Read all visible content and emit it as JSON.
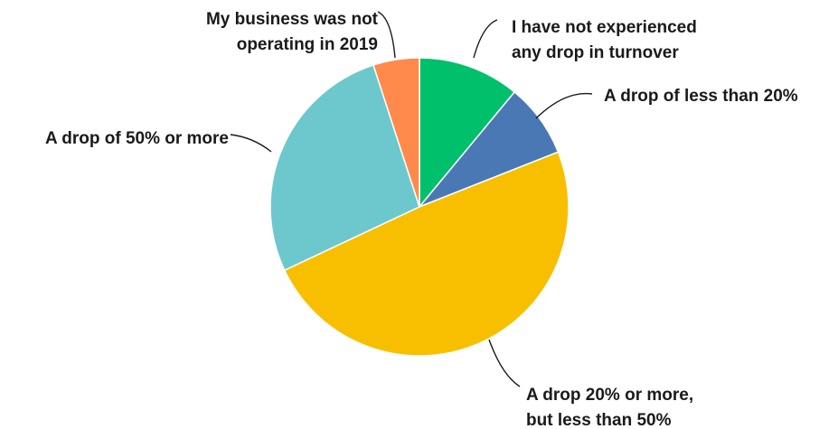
{
  "chart_data": {
    "type": "pie",
    "title": "",
    "slices": [
      {
        "label": "I have not experienced any drop in turnover",
        "lines": [
          "I have not experienced",
          "any drop in turnover"
        ],
        "value": 11,
        "color": "#00c06b"
      },
      {
        "label": "A drop of less than 20%",
        "lines": [
          "A drop of less than 20%"
        ],
        "value": 8,
        "color": "#4a78b4"
      },
      {
        "label": "A drop 20% or more, but less than 50%",
        "lines": [
          "A drop 20% or more,",
          "but less than 50%"
        ],
        "value": 49,
        "color": "#f8bf00"
      },
      {
        "label": "A drop of 50% or more",
        "lines": [
          "A drop of 50% or more"
        ],
        "value": 27,
        "color": "#6cc8cc"
      },
      {
        "label": "My business was not operating in 2019",
        "lines": [
          "My business was not",
          "operating in 2019"
        ],
        "value": 5,
        "color": "#ff8a4c"
      }
    ],
    "start_angle_deg": 0,
    "direction": "clockwise",
    "legend": "none"
  }
}
